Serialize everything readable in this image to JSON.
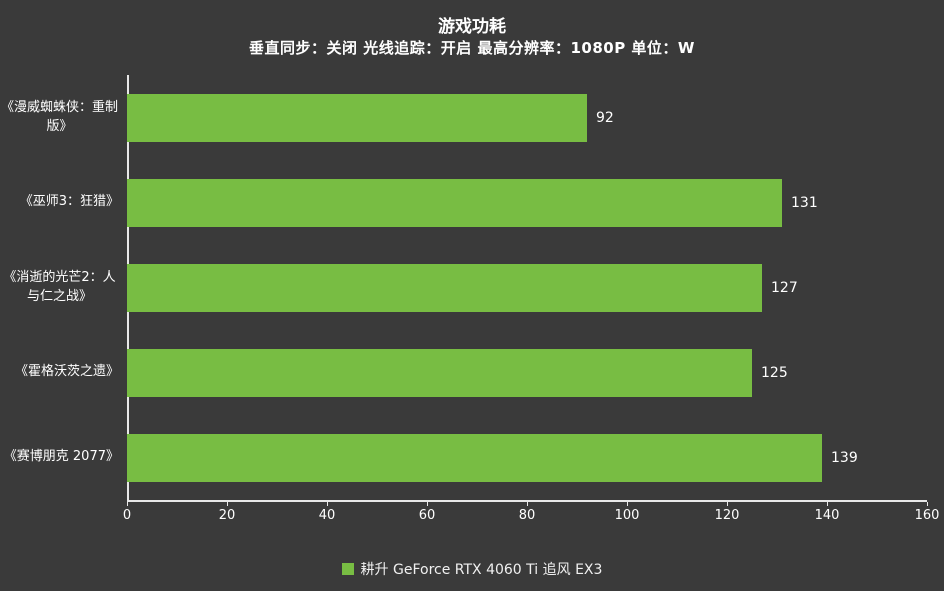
{
  "header": {
    "title": "游戏功耗",
    "subtitle": "垂直同步：关闭  光线追踪：开启  最高分辨率：1080P   单位：W"
  },
  "legend": {
    "label": "耕升 GeForce RTX 4060 Ti 追风 EX3",
    "marker_color": "#78bd43"
  },
  "chart_data": {
    "type": "bar",
    "orientation": "horizontal",
    "title": "游戏功耗",
    "subtitle": "垂直同步：关闭  光线追踪：开启  最高分辨率：1080P   单位：W",
    "categories": [
      "《漫威蜘蛛侠：重制版》",
      "《巫师3：狂猎》",
      "《消逝的光芒2：人与仁之战》",
      "《霍格沃茨之遗》",
      "《赛博朋克 2077》"
    ],
    "series": [
      {
        "name": "耕升 GeForce RTX 4060 Ti 追风 EX3",
        "values": [
          92,
          131,
          127,
          125,
          139
        ]
      }
    ],
    "xlabel": "",
    "ylabel": "",
    "xlim": [
      0,
      160
    ],
    "xticks": [
      0,
      20,
      40,
      60,
      80,
      100,
      120,
      140,
      160
    ],
    "grid": false,
    "legend_position": "bottom",
    "bar_color": "#78bd43",
    "unit": "W"
  },
  "colors": {
    "background": "#3a3a3a",
    "text": "#ffffff",
    "axis": "#e8e8e8",
    "bar": "#78bd43"
  }
}
